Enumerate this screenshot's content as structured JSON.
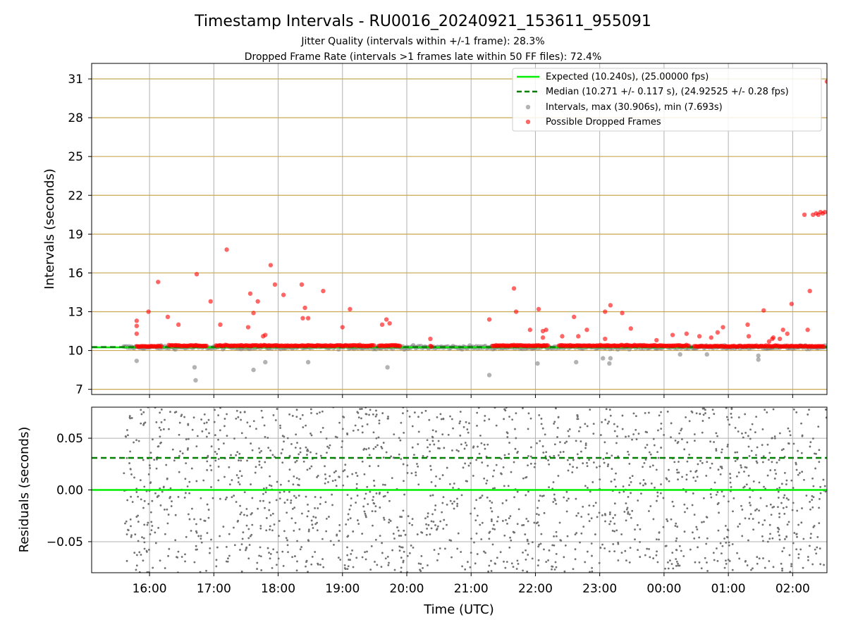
{
  "colors": {
    "expected": "#00ee00",
    "median": "#008000",
    "intervals": "#808080",
    "dropped": "#ff0000",
    "ygrid": "#c8a850",
    "xgrid": "#b0b0b0",
    "residual_points": "#707070"
  },
  "title": "Timestamp Intervals - RU0016_20240921_153611_955091",
  "subtitle_1": "Jitter Quality (intervals within +/-1 frame): 28.3%",
  "subtitle_2": "Dropped Frame Rate (intervals >1 frames late within 50 FF files): 72.4%",
  "xlabel": "Time (UTC)",
  "chart_data": [
    {
      "type": "scatter",
      "panel": "top",
      "ylabel": "Intervals (seconds)",
      "ylim": [
        6.6,
        32.2
      ],
      "yticks": [
        "7",
        "10",
        "13",
        "16",
        "19",
        "22",
        "25",
        "28",
        "31"
      ],
      "xlim": [
        "2024-09-21 15:06",
        "2024-09-22 02:32"
      ],
      "xticks": [
        "16:00",
        "17:00",
        "18:00",
        "19:00",
        "20:00",
        "21:00",
        "22:00",
        "23:00",
        "00:00",
        "01:00",
        "02:00"
      ],
      "grid": "on",
      "legend_position": "top-right",
      "legend": [
        "Expected (10.240s), (25.00000 fps)",
        "Median (10.271 +/- 0.117 s), (24.92525 +/- 0.28 fps)",
        "Intervals, max (30.906s), min (7.693s)",
        "Possible Dropped Frames"
      ],
      "expected_line": 10.24,
      "median_line": 10.271,
      "series": [
        {
          "name": "Intervals, max (30.906s), min (7.693s)",
          "style": "band",
          "x_start": "2024-09-21 15:36",
          "x_end": "2024-09-22 02:32",
          "y_center": 10.25,
          "outliers": [
            [
              "15:48",
              9.2
            ],
            [
              "16:42",
              8.7
            ],
            [
              "16:43",
              7.7
            ],
            [
              "17:37",
              8.5
            ],
            [
              "17:48",
              9.1
            ],
            [
              "18:28",
              9.1
            ],
            [
              "19:42",
              8.7
            ],
            [
              "21:17",
              8.1
            ],
            [
              "22:02",
              9.0
            ],
            [
              "22:38",
              9.1
            ],
            [
              "23:03",
              9.4
            ],
            [
              "23:09",
              9.0
            ],
            [
              "23:10",
              9.4
            ],
            [
              "00:15",
              9.7
            ],
            [
              "00:40",
              9.7
            ],
            [
              "01:28",
              9.3
            ],
            [
              "01:28",
              9.6
            ]
          ]
        },
        {
          "name": "Possible Dropped Frames",
          "style": "dense_run",
          "runs": [
            [
              "15:48",
              16.2,
              10.3
            ],
            [
              "16:18",
              16.9,
              10.35
            ],
            [
              "17:02",
              17.6,
              10.35
            ],
            [
              "17:36",
              19.5,
              10.35
            ],
            [
              "19:34",
              19.9,
              10.35
            ],
            [
              "20:22",
              20.4,
              10.3
            ],
            [
              "21:20",
              22.2,
              10.35
            ],
            [
              "22:22",
              24.4,
              10.35
            ],
            [
              "24:28",
              26.5,
              10.3
            ]
          ],
          "points": [
            [
              "15:48",
              12.3
            ],
            [
              "15:48",
              11.9
            ],
            [
              "15:48",
              11.3
            ],
            [
              "15:59",
              13.0
            ],
            [
              "16:08",
              15.3
            ],
            [
              "16:17",
              12.6
            ],
            [
              "16:27",
              12.0
            ],
            [
              "16:44",
              15.9
            ],
            [
              "16:57",
              13.8
            ],
            [
              "17:06",
              12.0
            ],
            [
              "17:12",
              17.8
            ],
            [
              "17:32",
              11.8
            ],
            [
              "17:34",
              14.4
            ],
            [
              "17:37",
              12.9
            ],
            [
              "17:41",
              13.8
            ],
            [
              "17:46",
              11.1
            ],
            [
              "17:48",
              11.2
            ],
            [
              "17:53",
              16.6
            ],
            [
              "17:57",
              15.1
            ],
            [
              "18:05",
              14.3
            ],
            [
              "18:22",
              15.1
            ],
            [
              "18:23",
              12.5
            ],
            [
              "18:25",
              13.3
            ],
            [
              "18:28",
              12.5
            ],
            [
              "18:42",
              14.6
            ],
            [
              "19:00",
              11.8
            ],
            [
              "19:07",
              13.2
            ],
            [
              "19:37",
              12.0
            ],
            [
              "19:41",
              12.4
            ],
            [
              "19:44",
              12.1
            ],
            [
              "20:22",
              10.9
            ],
            [
              "21:17",
              12.4
            ],
            [
              "21:40",
              14.8
            ],
            [
              "21:42",
              13.0
            ],
            [
              "21:55",
              11.6
            ],
            [
              "22:03",
              13.2
            ],
            [
              "22:07",
              11.5
            ],
            [
              "22:10",
              11.6
            ],
            [
              "22:07",
              11.0
            ],
            [
              "22:25",
              11.1
            ],
            [
              "22:36",
              12.6
            ],
            [
              "22:40",
              11.1
            ],
            [
              "22:48",
              11.6
            ],
            [
              "23:05",
              13.0
            ],
            [
              "23:10",
              13.5
            ],
            [
              "23:05",
              10.9
            ],
            [
              "23:21",
              12.9
            ],
            [
              "23:29",
              11.7
            ],
            [
              "23:53",
              10.8
            ],
            [
              "24:08",
              11.2
            ],
            [
              "24:21",
              11.3
            ],
            [
              "24:33",
              11.1
            ],
            [
              "24:44",
              11.0
            ],
            [
              "24:50",
              11.4
            ],
            [
              "24:55",
              11.8
            ],
            [
              "25:18",
              12.0
            ],
            [
              "25:19",
              11.1
            ],
            [
              "25:33",
              13.1
            ],
            [
              "25:38",
              10.7
            ],
            [
              "25:41",
              10.9
            ],
            [
              "25:48",
              10.9
            ],
            [
              "25:51",
              11.6
            ],
            [
              "25:55",
              11.3
            ],
            [
              "25:59",
              13.6
            ],
            [
              "25:42",
              11.0
            ],
            [
              "26:14",
              11.6
            ],
            [
              "26:16",
              14.6
            ],
            [
              "26:11",
              20.5
            ],
            [
              "26:19",
              20.5
            ],
            [
              "26:22",
              20.6
            ],
            [
              "26:24",
              20.5
            ],
            [
              "26:26",
              20.7
            ],
            [
              "26:28",
              20.6
            ],
            [
              "26:30",
              20.7
            ],
            [
              "26:32",
              30.8
            ]
          ]
        }
      ]
    },
    {
      "type": "scatter",
      "panel": "bottom",
      "ylabel": "Residuals (seconds)",
      "ylim": [
        -0.08,
        0.08
      ],
      "yticks": [
        "−0.05",
        "0.00",
        "0.05"
      ],
      "xlim": [
        "2024-09-21 15:06",
        "2024-09-22 02:32"
      ],
      "grid": "on",
      "expected_line": 0.0,
      "median_line": 0.031,
      "series": [
        {
          "name": "",
          "style": "scatter_cloud",
          "x_start": "2024-09-21 15:36",
          "x_end": "2024-09-22 02:32",
          "y_range": [
            -0.08,
            0.08
          ]
        }
      ]
    }
  ]
}
